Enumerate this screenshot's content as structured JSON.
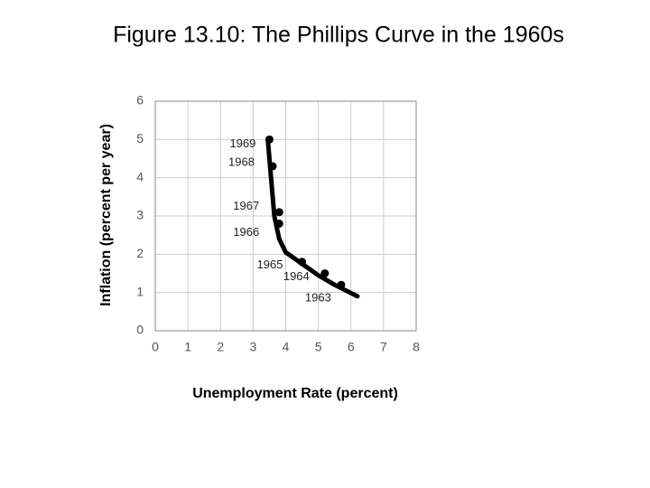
{
  "chart_data": {
    "type": "scatter",
    "title": "Figure 13.10: The Phillips Curve in the 1960s",
    "x_label": "Unemployment Rate (percent)",
    "y_label": "Inflation (percent per year)",
    "series": [
      {
        "name": "1960s",
        "color": "#000000",
        "labels": [
          "1969",
          "1968",
          "1967",
          "1966",
          "1965",
          "1964",
          "1963"
        ],
        "x": [
          3.5,
          3.6,
          3.8,
          3.8,
          4.5,
          5.2,
          5.7
        ],
        "values": [
          5.0,
          4.3,
          3.1,
          2.8,
          1.8,
          1.5,
          1.2
        ]
      }
    ],
    "curve": {
      "color": "#000000",
      "x": [
        3.45,
        3.55,
        3.65,
        3.8,
        4.0,
        4.5,
        5.0,
        5.5,
        6.2
      ],
      "values": [
        5.0,
        4.0,
        3.0,
        2.4,
        2.05,
        1.75,
        1.45,
        1.2,
        0.9
      ]
    },
    "xlim": [
      0,
      8
    ],
    "xticks": [
      0,
      1,
      2,
      3,
      4,
      5,
      6,
      7,
      8
    ],
    "ylim": [
      0,
      6
    ],
    "yticks": [
      0,
      1,
      2,
      3,
      4,
      5,
      6
    ],
    "grid": true
  }
}
